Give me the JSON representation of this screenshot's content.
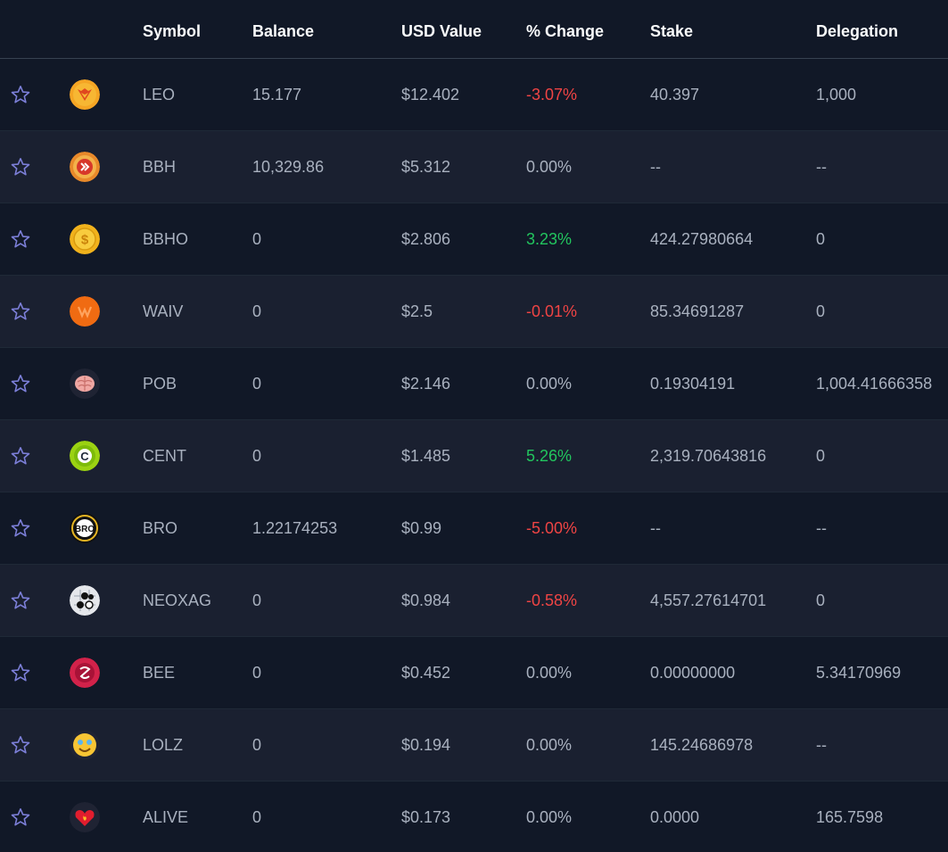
{
  "headers": {
    "symbol": "Symbol",
    "balance": "Balance",
    "usd_value": "USD Value",
    "change": "% Change",
    "stake": "Stake",
    "delegation": "Delegation"
  },
  "colors": {
    "positive": "#22c55e",
    "negative": "#ef4444",
    "neutral": "#a9b1bf",
    "star": "#7c7fd8"
  },
  "rows": [
    {
      "symbol": "LEO",
      "balance": "15.177",
      "usd": "$12.402",
      "change": "-3.07%",
      "trend": "negative",
      "stake": "40.397",
      "delegation": "1,000",
      "icon": "leo-logo-icon"
    },
    {
      "symbol": "BBH",
      "balance": "10,329.86",
      "usd": "$5.312",
      "change": "0.00%",
      "trend": "neutral",
      "stake": "--",
      "delegation": "--",
      "icon": "bbh-logo-icon"
    },
    {
      "symbol": "BBHO",
      "balance": "0",
      "usd": "$2.806",
      "change": "3.23%",
      "trend": "positive",
      "stake": "424.27980664",
      "delegation": "0",
      "icon": "bbho-logo-icon"
    },
    {
      "symbol": "WAIV",
      "balance": "0",
      "usd": "$2.5",
      "change": "-0.01%",
      "trend": "negative",
      "stake": "85.34691287",
      "delegation": "0",
      "icon": "waiv-logo-icon"
    },
    {
      "symbol": "POB",
      "balance": "0",
      "usd": "$2.146",
      "change": "0.00%",
      "trend": "neutral",
      "stake": "0.19304191",
      "delegation": "1,004.41666358",
      "icon": "pob-brain-logo-icon"
    },
    {
      "symbol": "CENT",
      "balance": "0",
      "usd": "$1.485",
      "change": "5.26%",
      "trend": "positive",
      "stake": "2,319.70643816",
      "delegation": "0",
      "icon": "cent-logo-icon"
    },
    {
      "symbol": "BRO",
      "balance": "1.22174253",
      "usd": "$0.99",
      "change": "-5.00%",
      "trend": "negative",
      "stake": "--",
      "delegation": "--",
      "icon": "bro-logo-icon"
    },
    {
      "symbol": "NEOXAG",
      "balance": "0",
      "usd": "$0.984",
      "change": "-0.58%",
      "trend": "negative",
      "stake": "4,557.27614701",
      "delegation": "0",
      "icon": "neoxag-logo-icon"
    },
    {
      "symbol": "BEE",
      "balance": "0",
      "usd": "$0.452",
      "change": "0.00%",
      "trend": "neutral",
      "stake": "0.00000000",
      "delegation": "5.34170969",
      "icon": "bee-logo-icon"
    },
    {
      "symbol": "LOLZ",
      "balance": "0",
      "usd": "$0.194",
      "change": "0.00%",
      "trend": "neutral",
      "stake": "145.24686978",
      "delegation": "--",
      "icon": "lolz-logo-icon"
    },
    {
      "symbol": "ALIVE",
      "balance": "0",
      "usd": "$0.173",
      "change": "0.00%",
      "trend": "neutral",
      "stake": "0.0000",
      "delegation": "165.7598",
      "icon": "alive-heart-logo-icon"
    }
  ]
}
